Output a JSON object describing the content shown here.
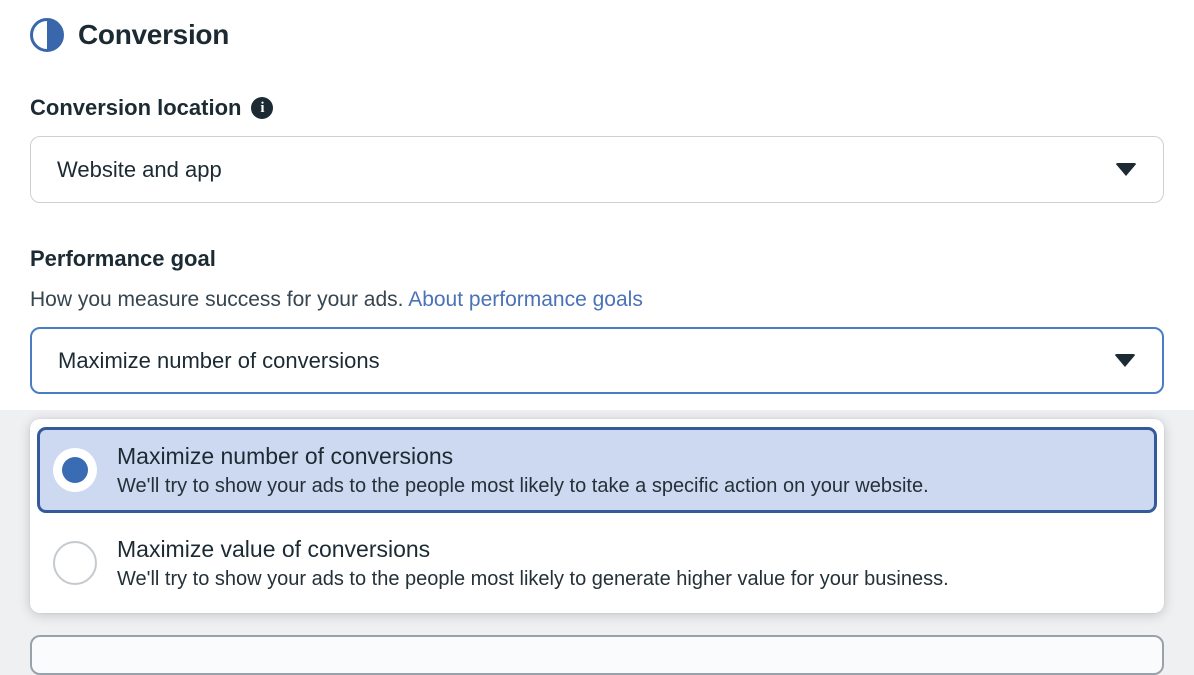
{
  "header": {
    "title": "Conversion",
    "icon": "half-circle-icon"
  },
  "conversion_location": {
    "label": "Conversion location",
    "info_icon_glyph": "i",
    "value": "Website and app"
  },
  "performance_goal": {
    "label": "Performance goal",
    "description": "How you measure success for your ads.",
    "link_label": "About performance goals",
    "value": "Maximize number of conversions"
  },
  "dropdown": {
    "options": [
      {
        "title": "Maximize number of conversions",
        "description": "We'll try to show your ads to the people most likely to take a specific action on your website.",
        "selected": true
      },
      {
        "title": "Maximize value of conversions",
        "description": "We'll try to show your ads to the people most likely to generate higher value for your business.",
        "selected": false
      }
    ]
  },
  "colors": {
    "accent_blue": "#3a6cb4",
    "selected_option_bg": "#ccd9f0",
    "selected_option_border": "#355a9b",
    "focus_border": "#4a7dc4",
    "link_blue": "#4a72b8",
    "text_primary": "#1c2b33",
    "input_border": "#ccd1d6",
    "page_backdrop": "#eff0f2"
  }
}
